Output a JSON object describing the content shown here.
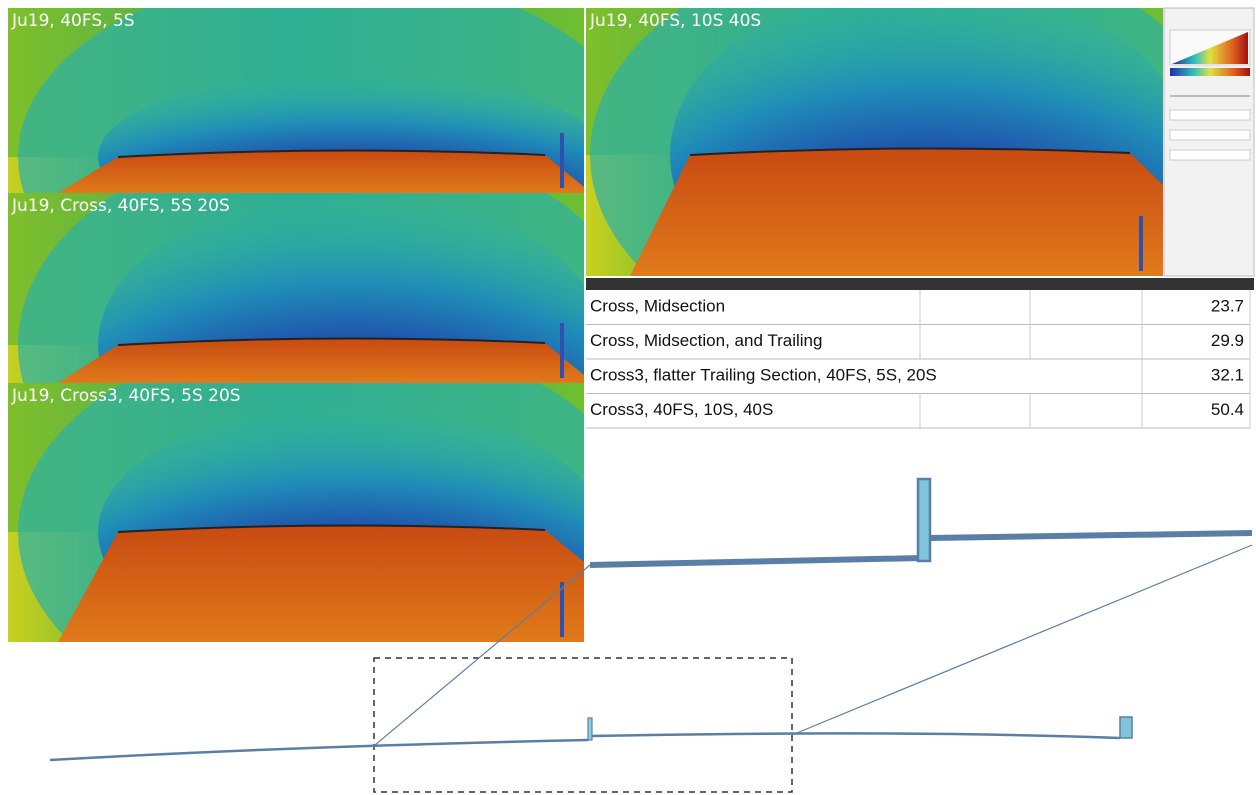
{
  "panels": [
    {
      "label": "Ju19, 40FS, 5S"
    },
    {
      "label": "Ju19, Cross, 40FS, 5S 20S"
    },
    {
      "label": "Ju19, Cross3, 40FS, 5S 20S"
    },
    {
      "label": "Ju19, 40FS, 10S 40S"
    }
  ],
  "table": {
    "rows": [
      [
        "Cross, Midsection",
        23.7
      ],
      [
        "Cross, Midsection, and Trailing",
        29.9
      ],
      [
        "Cross3, flatter Trailing Section, 40FS, 5S, 20S",
        32.1
      ],
      [
        "Cross3, 40FS, 10S, 40S",
        50.4
      ]
    ]
  }
}
